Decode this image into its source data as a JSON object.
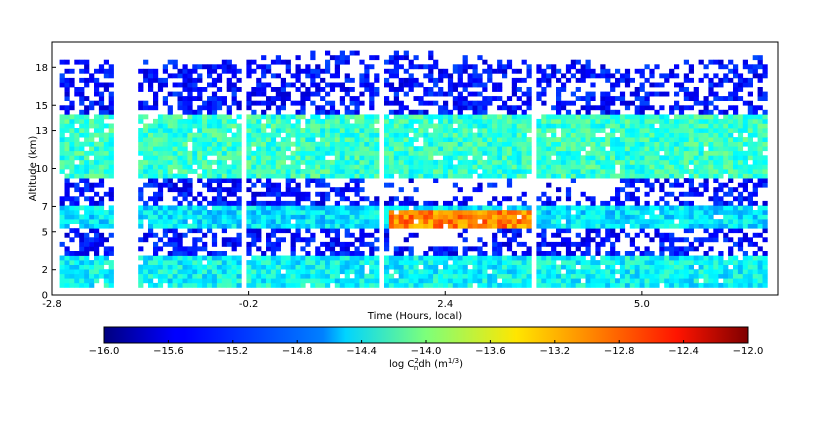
{
  "chart_data": {
    "type": "heatmap",
    "xlabel": "Time (Hours, local)",
    "ylabel": "Altitude (km)",
    "xlim": [
      -2.8,
      6.8
    ],
    "ylim": [
      0,
      20
    ],
    "xticks": [
      -2.8,
      -0.2,
      2.4,
      5.0
    ],
    "xtick_labels": [
      "-2.8",
      "-0.2",
      "2.4",
      "5.0"
    ],
    "yticks": [
      0,
      2,
      5,
      7,
      10,
      13,
      15,
      18
    ],
    "ytick_labels": [
      "0",
      "2",
      "5",
      "7",
      "10",
      "13",
      "15",
      "18"
    ],
    "colorbar": {
      "label_main": "log C",
      "label_sup": "2",
      "label_sub": "n",
      "label_rest": "dh (m",
      "label_unit_sup": "1/3",
      "label_close": ")",
      "range": [
        -16.0,
        -12.0
      ],
      "ticks": [
        -16.0,
        -15.6,
        -15.2,
        -14.8,
        -14.4,
        -14.0,
        -13.6,
        -13.2,
        -12.8,
        -12.4,
        -12.0
      ],
      "tick_labels": [
        "−16.0",
        "−15.6",
        "−15.2",
        "−14.8",
        "−14.4",
        "−14.0",
        "−13.6",
        "−13.2",
        "−12.8",
        "−12.4",
        "−12.0"
      ],
      "colormap": "jet"
    },
    "data_gaps_hours": [
      [
        -2.02,
        -1.72
      ],
      [
        -0.32,
        -0.24
      ],
      [
        1.5,
        1.58
      ],
      [
        3.48,
        3.56
      ]
    ],
    "layers": [
      {
        "altitude_km_range": [
          9,
          14
        ],
        "typical_value": -14.3
      },
      {
        "altitude_km_range": [
          5,
          7
        ],
        "typical_value": -14.6
      },
      {
        "altitude_km_range": [
          0.5,
          3
        ],
        "typical_value": -14.5
      },
      {
        "altitude_km_range": [
          5,
          6.5
        ],
        "time_range": [
          1.6,
          3.5
        ],
        "typical_value": -13.0
      }
    ],
    "grid": false,
    "colors": {
      "background": "#ffffff",
      "axes": "#000000"
    }
  }
}
